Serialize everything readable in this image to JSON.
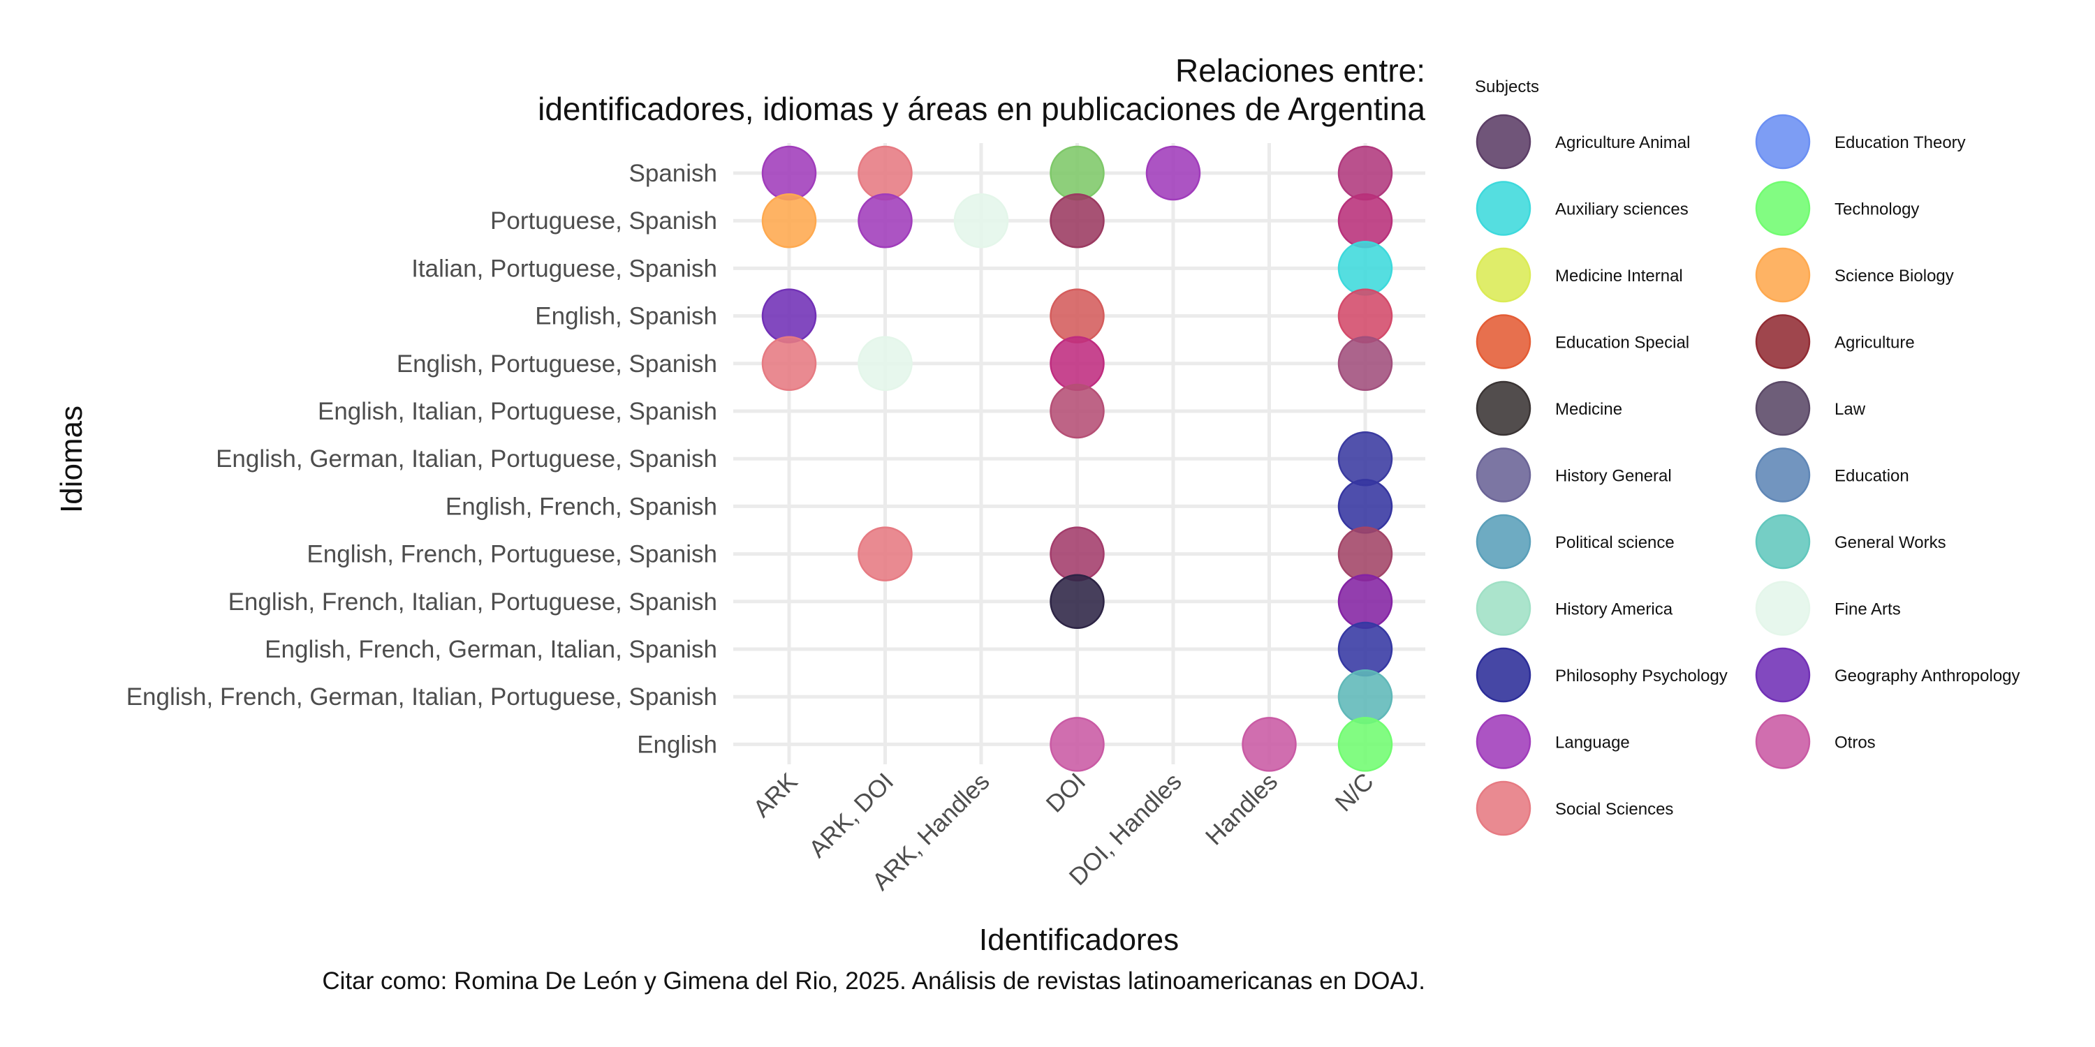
{
  "chart_data": {
    "type": "scatter",
    "title_line1": "Relaciones entre:",
    "title_line2": "identificadores, idiomas y áreas en publicaciones de Argentina",
    "xlabel": "Identificadores",
    "ylabel": "Idiomas",
    "caption": "Citar como: Romina De León y Gimena del Rio, 2025. Análisis de revistas latinoamericanas en DOAJ.",
    "legend_title": "Subjects",
    "x_categories": [
      "ARK",
      "ARK, DOI",
      "ARK, Handles",
      "DOI",
      "DOI, Handles",
      "Handles",
      "N/C"
    ],
    "y_categories": [
      "Spanish",
      "Portuguese, Spanish",
      "Italian, Portuguese, Spanish",
      "English, Spanish",
      "English, Portuguese, Spanish",
      "English, Italian, Portuguese, Spanish",
      "English, German, Italian, Portuguese, Spanish",
      "English, French, Spanish",
      "English, French, Portuguese, Spanish",
      "English, French, Italian, Portuguese, Spanish",
      "English, French, German, Italian, Spanish",
      "English, French, German, Italian, Portuguese, Spanish",
      "English"
    ],
    "subjects": [
      {
        "name": "Agriculture Animal",
        "color": "#5c3e66"
      },
      {
        "name": "Auxiliary sciences",
        "color": "#3dd9dc"
      },
      {
        "name": "Medicine Internal",
        "color": "#dbeb55"
      },
      {
        "name": "Education Special",
        "color": "#e45c35"
      },
      {
        "name": "Medicine",
        "color": "#3a3434"
      },
      {
        "name": "History General",
        "color": "#6a6396"
      },
      {
        "name": "Political science",
        "color": "#5a9fb9"
      },
      {
        "name": "History America",
        "color": "#9fe0c5"
      },
      {
        "name": "Philosophy Psychology",
        "color": "#2c2d99"
      },
      {
        "name": "Language",
        "color": "#a03cbb"
      },
      {
        "name": "Social Sciences",
        "color": "#e67a82"
      },
      {
        "name": "Education Theory",
        "color": "#6b8ff3"
      },
      {
        "name": "Technology",
        "color": "#71fc71"
      },
      {
        "name": "Science Biology",
        "color": "#fea94f"
      },
      {
        "name": "Agriculture",
        "color": "#922c34"
      },
      {
        "name": "Law",
        "color": "#5a4866"
      },
      {
        "name": "Education",
        "color": "#5f86b6"
      },
      {
        "name": "General Works",
        "color": "#62c7bd"
      },
      {
        "name": "Fine Arts",
        "color": "#e4f6ea"
      },
      {
        "name": "Geography Anthropology",
        "color": "#7130b6"
      },
      {
        "name": "Otros",
        "color": "#c95aa4"
      }
    ],
    "points": [
      {
        "x": "ARK",
        "y": "Spanish",
        "subject": "Language"
      },
      {
        "x": "ARK, DOI",
        "y": "Spanish",
        "subject": "Social Sciences"
      },
      {
        "x": "DOI",
        "y": "Spanish",
        "subject": "Technology",
        "color": "#7ec869"
      },
      {
        "x": "DOI, Handles",
        "y": "Spanish",
        "subject": "Language"
      },
      {
        "x": "N/C",
        "y": "Spanish",
        "subject": "Otros",
        "color": "#b0397d"
      },
      {
        "x": "ARK",
        "y": "Portuguese, Spanish",
        "subject": "Science Biology"
      },
      {
        "x": "ARK, DOI",
        "y": "Portuguese, Spanish",
        "subject": "Language"
      },
      {
        "x": "ARK, Handles",
        "y": "Portuguese, Spanish",
        "subject": "Fine Arts"
      },
      {
        "x": "DOI",
        "y": "Portuguese, Spanish",
        "subject": "Agriculture",
        "color": "#9b3a61"
      },
      {
        "x": "N/C",
        "y": "Portuguese, Spanish",
        "subject": "Otros",
        "color": "#b8307a"
      },
      {
        "x": "N/C",
        "y": "Italian, Portuguese, Spanish",
        "subject": "Auxiliary sciences"
      },
      {
        "x": "ARK",
        "y": "English, Spanish",
        "subject": "Geography Anthropology"
      },
      {
        "x": "DOI",
        "y": "English, Spanish",
        "subject": "Education Special",
        "color": "#d45c5c"
      },
      {
        "x": "N/C",
        "y": "English, Spanish",
        "subject": "Social Sciences",
        "color": "#d34a6a"
      },
      {
        "x": "ARK",
        "y": "English, Portuguese, Spanish",
        "subject": "Social Sciences"
      },
      {
        "x": "ARK, DOI",
        "y": "English, Portuguese, Spanish",
        "subject": "Fine Arts"
      },
      {
        "x": "DOI",
        "y": "English, Portuguese, Spanish",
        "subject": "Otros",
        "color": "#bf2c7f"
      },
      {
        "x": "N/C",
        "y": "English, Portuguese, Spanish",
        "subject": "Otros",
        "color": "#a14f7c"
      },
      {
        "x": "DOI",
        "y": "English, Italian, Portuguese, Spanish",
        "subject": "Otros",
        "color": "#b54f75"
      },
      {
        "x": "N/C",
        "y": "English, German, Italian, Portuguese, Spanish",
        "subject": "Philosophy Psychology",
        "color": "#3a3aa0"
      },
      {
        "x": "N/C",
        "y": "English, French, Spanish",
        "subject": "Philosophy Psychology",
        "color": "#3535a0"
      },
      {
        "x": "ARK, DOI",
        "y": "English, French, Portuguese, Spanish",
        "subject": "Social Sciences"
      },
      {
        "x": "DOI",
        "y": "English, French, Portuguese, Spanish",
        "subject": "Agriculture",
        "color": "#a33c6b"
      },
      {
        "x": "N/C",
        "y": "English, French, Portuguese, Spanish",
        "subject": "Agriculture",
        "color": "#a24467"
      },
      {
        "x": "DOI",
        "y": "English, French, Italian, Portuguese, Spanish",
        "subject": "Medicine",
        "color": "#2d2445"
      },
      {
        "x": "N/C",
        "y": "English, French, Italian, Portuguese, Spanish",
        "subject": "Geography Anthropology",
        "color": "#8423a3"
      },
      {
        "x": "N/C",
        "y": "English, French, German, Italian, Spanish",
        "subject": "Philosophy Psychology",
        "color": "#3538a3"
      },
      {
        "x": "N/C",
        "y": "English, French, German, Italian, Portuguese, Spanish",
        "subject": "General Works",
        "color": "#5fb8b8"
      },
      {
        "x": "DOI",
        "y": "English",
        "subject": "Otros"
      },
      {
        "x": "Handles",
        "y": "English",
        "subject": "Otros"
      },
      {
        "x": "N/C",
        "y": "English",
        "subject": "Technology"
      }
    ]
  }
}
